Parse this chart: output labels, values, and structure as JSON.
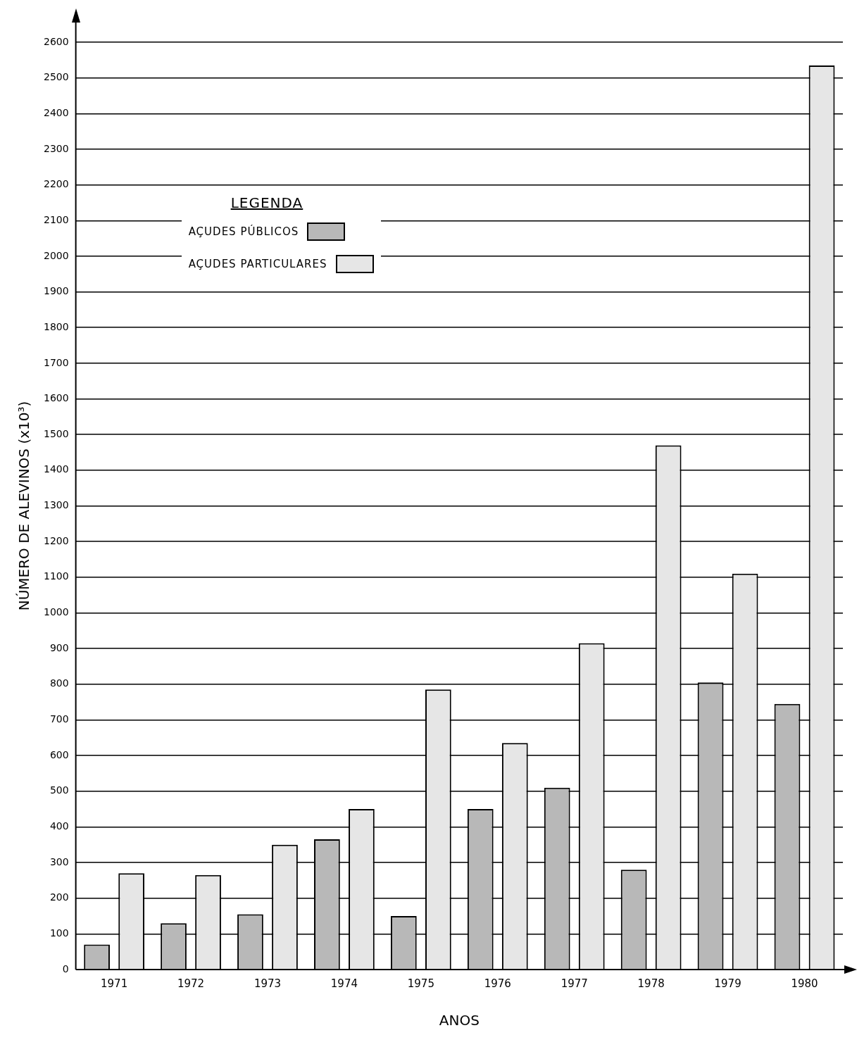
{
  "chart_data": {
    "type": "bar",
    "xlabel": "ANOS",
    "ylabel": "NÚMERO DE ALEVINOS (x10³)",
    "legend_title": "LEGENDA",
    "categories": [
      "1971",
      "1972",
      "1973",
      "1974",
      "1975",
      "1976",
      "1977",
      "1978",
      "1979",
      "1980"
    ],
    "series": [
      {
        "name": "AÇUDES PÚBLICOS",
        "color": "#b8b8b8",
        "values": [
          70,
          130,
          155,
          365,
          150,
          450,
          510,
          280,
          805,
          745
        ]
      },
      {
        "name": "AÇUDES PARTICULARES",
        "color": "#e6e6e6",
        "values": [
          270,
          265,
          350,
          450,
          785,
          635,
          915,
          1470,
          1110,
          2535
        ]
      }
    ],
    "ylim": [
      0,
      2600
    ],
    "yticks": [
      0,
      100,
      200,
      300,
      400,
      500,
      600,
      700,
      800,
      900,
      1000,
      1100,
      1200,
      1300,
      1400,
      1500,
      1600,
      1700,
      1800,
      1900,
      2000,
      2100,
      2200,
      2300,
      2400,
      2500,
      2600
    ],
    "grid": "y",
    "legend": "top left"
  }
}
